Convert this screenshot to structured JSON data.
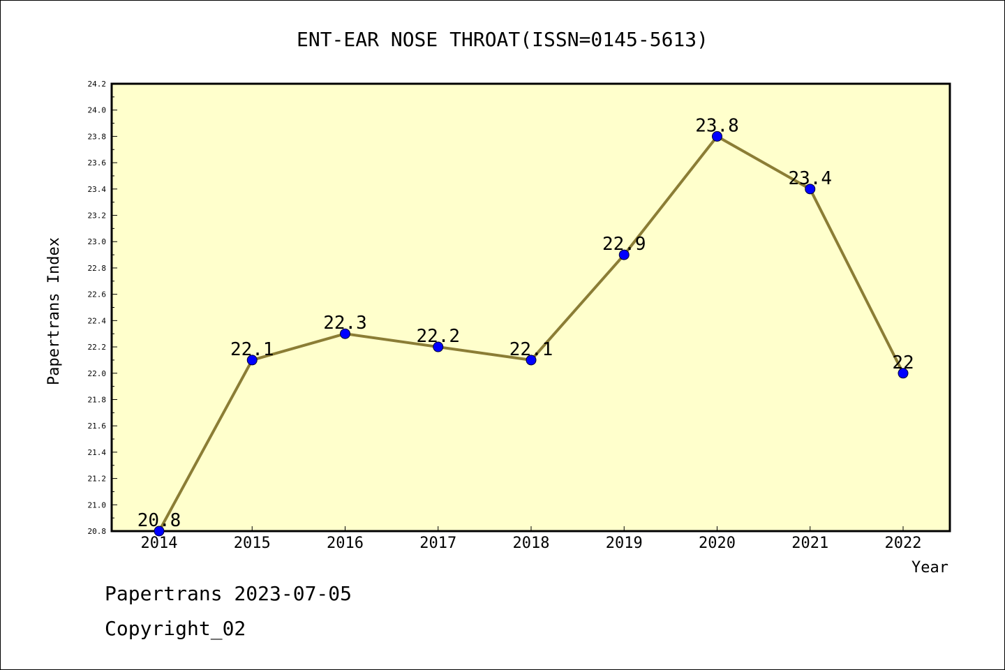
{
  "chart_data": {
    "type": "line",
    "title": "ENT-EAR NOSE THROAT(ISSN=0145-5613)",
    "xlabel": "Year",
    "ylabel": "Papertrans Index",
    "categories": [
      "2014",
      "2015",
      "2016",
      "2017",
      "2018",
      "2019",
      "2020",
      "2021",
      "2022"
    ],
    "values": [
      20.8,
      22.1,
      22.3,
      22.2,
      22.1,
      22.9,
      23.8,
      23.4,
      22
    ],
    "data_labels": [
      "20.8",
      "22.1",
      "22.3",
      "22.2",
      "22.1",
      "22.9",
      "23.8",
      "23.4",
      "22"
    ],
    "ylim": [
      20.8,
      24.2
    ],
    "yticks": [
      "20.8",
      "21.0",
      "21.2",
      "21.4",
      "21.6",
      "21.8",
      "22.0",
      "22.2",
      "22.4",
      "22.6",
      "22.8",
      "23.0",
      "23.2",
      "23.4",
      "23.6",
      "23.8",
      "24.0",
      "24.2"
    ],
    "grid": false,
    "colors": {
      "plot_background": "#FFFFCC",
      "line": "#8B7D35",
      "marker": "#0000FF"
    }
  },
  "footer": {
    "line1": "Papertrans 2023-07-05",
    "line2": "Copyright_02"
  }
}
